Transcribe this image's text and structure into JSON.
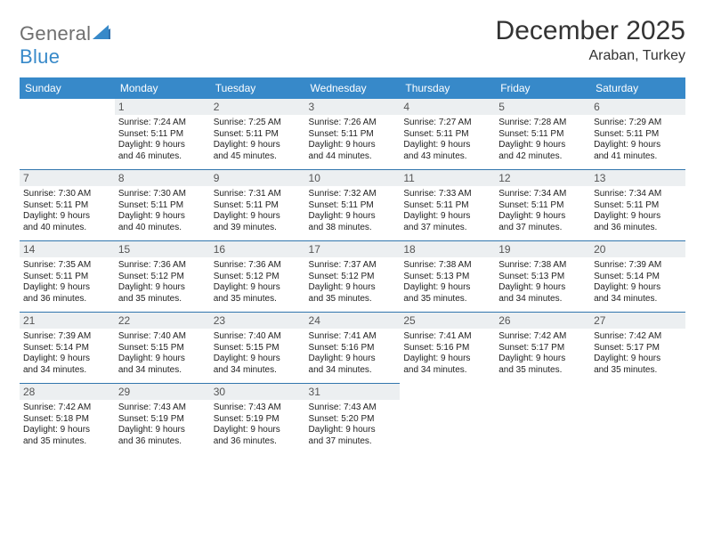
{
  "logo": {
    "word1": "General",
    "word2": "Blue",
    "word1_color": "#6f6f6f",
    "word2_color": "#3789c9",
    "sail_color": "#2f6fab"
  },
  "title": "December 2025",
  "location": "Araban, Turkey",
  "colors": {
    "header_bg": "#3789c9",
    "header_fg": "#ffffff",
    "rule": "#3176ad",
    "daynum_bg": "#eceff1",
    "text": "#222222",
    "background": "#ffffff"
  },
  "typography": {
    "title_size": 30,
    "location_size": 16,
    "dayhead_size": 12,
    "body_size": 10
  },
  "day_headers": [
    "Sunday",
    "Monday",
    "Tuesday",
    "Wednesday",
    "Thursday",
    "Friday",
    "Saturday"
  ],
  "weeks": [
    [
      {
        "n": "",
        "sunrise": "",
        "sunset": "",
        "daylight1": "",
        "daylight2": ""
      },
      {
        "n": "1",
        "sunrise": "Sunrise: 7:24 AM",
        "sunset": "Sunset: 5:11 PM",
        "daylight1": "Daylight: 9 hours",
        "daylight2": "and 46 minutes."
      },
      {
        "n": "2",
        "sunrise": "Sunrise: 7:25 AM",
        "sunset": "Sunset: 5:11 PM",
        "daylight1": "Daylight: 9 hours",
        "daylight2": "and 45 minutes."
      },
      {
        "n": "3",
        "sunrise": "Sunrise: 7:26 AM",
        "sunset": "Sunset: 5:11 PM",
        "daylight1": "Daylight: 9 hours",
        "daylight2": "and 44 minutes."
      },
      {
        "n": "4",
        "sunrise": "Sunrise: 7:27 AM",
        "sunset": "Sunset: 5:11 PM",
        "daylight1": "Daylight: 9 hours",
        "daylight2": "and 43 minutes."
      },
      {
        "n": "5",
        "sunrise": "Sunrise: 7:28 AM",
        "sunset": "Sunset: 5:11 PM",
        "daylight1": "Daylight: 9 hours",
        "daylight2": "and 42 minutes."
      },
      {
        "n": "6",
        "sunrise": "Sunrise: 7:29 AM",
        "sunset": "Sunset: 5:11 PM",
        "daylight1": "Daylight: 9 hours",
        "daylight2": "and 41 minutes."
      }
    ],
    [
      {
        "n": "7",
        "sunrise": "Sunrise: 7:30 AM",
        "sunset": "Sunset: 5:11 PM",
        "daylight1": "Daylight: 9 hours",
        "daylight2": "and 40 minutes."
      },
      {
        "n": "8",
        "sunrise": "Sunrise: 7:30 AM",
        "sunset": "Sunset: 5:11 PM",
        "daylight1": "Daylight: 9 hours",
        "daylight2": "and 40 minutes."
      },
      {
        "n": "9",
        "sunrise": "Sunrise: 7:31 AM",
        "sunset": "Sunset: 5:11 PM",
        "daylight1": "Daylight: 9 hours",
        "daylight2": "and 39 minutes."
      },
      {
        "n": "10",
        "sunrise": "Sunrise: 7:32 AM",
        "sunset": "Sunset: 5:11 PM",
        "daylight1": "Daylight: 9 hours",
        "daylight2": "and 38 minutes."
      },
      {
        "n": "11",
        "sunrise": "Sunrise: 7:33 AM",
        "sunset": "Sunset: 5:11 PM",
        "daylight1": "Daylight: 9 hours",
        "daylight2": "and 37 minutes."
      },
      {
        "n": "12",
        "sunrise": "Sunrise: 7:34 AM",
        "sunset": "Sunset: 5:11 PM",
        "daylight1": "Daylight: 9 hours",
        "daylight2": "and 37 minutes."
      },
      {
        "n": "13",
        "sunrise": "Sunrise: 7:34 AM",
        "sunset": "Sunset: 5:11 PM",
        "daylight1": "Daylight: 9 hours",
        "daylight2": "and 36 minutes."
      }
    ],
    [
      {
        "n": "14",
        "sunrise": "Sunrise: 7:35 AM",
        "sunset": "Sunset: 5:11 PM",
        "daylight1": "Daylight: 9 hours",
        "daylight2": "and 36 minutes."
      },
      {
        "n": "15",
        "sunrise": "Sunrise: 7:36 AM",
        "sunset": "Sunset: 5:12 PM",
        "daylight1": "Daylight: 9 hours",
        "daylight2": "and 35 minutes."
      },
      {
        "n": "16",
        "sunrise": "Sunrise: 7:36 AM",
        "sunset": "Sunset: 5:12 PM",
        "daylight1": "Daylight: 9 hours",
        "daylight2": "and 35 minutes."
      },
      {
        "n": "17",
        "sunrise": "Sunrise: 7:37 AM",
        "sunset": "Sunset: 5:12 PM",
        "daylight1": "Daylight: 9 hours",
        "daylight2": "and 35 minutes."
      },
      {
        "n": "18",
        "sunrise": "Sunrise: 7:38 AM",
        "sunset": "Sunset: 5:13 PM",
        "daylight1": "Daylight: 9 hours",
        "daylight2": "and 35 minutes."
      },
      {
        "n": "19",
        "sunrise": "Sunrise: 7:38 AM",
        "sunset": "Sunset: 5:13 PM",
        "daylight1": "Daylight: 9 hours",
        "daylight2": "and 34 minutes."
      },
      {
        "n": "20",
        "sunrise": "Sunrise: 7:39 AM",
        "sunset": "Sunset: 5:14 PM",
        "daylight1": "Daylight: 9 hours",
        "daylight2": "and 34 minutes."
      }
    ],
    [
      {
        "n": "21",
        "sunrise": "Sunrise: 7:39 AM",
        "sunset": "Sunset: 5:14 PM",
        "daylight1": "Daylight: 9 hours",
        "daylight2": "and 34 minutes."
      },
      {
        "n": "22",
        "sunrise": "Sunrise: 7:40 AM",
        "sunset": "Sunset: 5:15 PM",
        "daylight1": "Daylight: 9 hours",
        "daylight2": "and 34 minutes."
      },
      {
        "n": "23",
        "sunrise": "Sunrise: 7:40 AM",
        "sunset": "Sunset: 5:15 PM",
        "daylight1": "Daylight: 9 hours",
        "daylight2": "and 34 minutes."
      },
      {
        "n": "24",
        "sunrise": "Sunrise: 7:41 AM",
        "sunset": "Sunset: 5:16 PM",
        "daylight1": "Daylight: 9 hours",
        "daylight2": "and 34 minutes."
      },
      {
        "n": "25",
        "sunrise": "Sunrise: 7:41 AM",
        "sunset": "Sunset: 5:16 PM",
        "daylight1": "Daylight: 9 hours",
        "daylight2": "and 34 minutes."
      },
      {
        "n": "26",
        "sunrise": "Sunrise: 7:42 AM",
        "sunset": "Sunset: 5:17 PM",
        "daylight1": "Daylight: 9 hours",
        "daylight2": "and 35 minutes."
      },
      {
        "n": "27",
        "sunrise": "Sunrise: 7:42 AM",
        "sunset": "Sunset: 5:17 PM",
        "daylight1": "Daylight: 9 hours",
        "daylight2": "and 35 minutes."
      }
    ],
    [
      {
        "n": "28",
        "sunrise": "Sunrise: 7:42 AM",
        "sunset": "Sunset: 5:18 PM",
        "daylight1": "Daylight: 9 hours",
        "daylight2": "and 35 minutes."
      },
      {
        "n": "29",
        "sunrise": "Sunrise: 7:43 AM",
        "sunset": "Sunset: 5:19 PM",
        "daylight1": "Daylight: 9 hours",
        "daylight2": "and 36 minutes."
      },
      {
        "n": "30",
        "sunrise": "Sunrise: 7:43 AM",
        "sunset": "Sunset: 5:19 PM",
        "daylight1": "Daylight: 9 hours",
        "daylight2": "and 36 minutes."
      },
      {
        "n": "31",
        "sunrise": "Sunrise: 7:43 AM",
        "sunset": "Sunset: 5:20 PM",
        "daylight1": "Daylight: 9 hours",
        "daylight2": "and 37 minutes."
      },
      {
        "n": "",
        "sunrise": "",
        "sunset": "",
        "daylight1": "",
        "daylight2": ""
      },
      {
        "n": "",
        "sunrise": "",
        "sunset": "",
        "daylight1": "",
        "daylight2": ""
      },
      {
        "n": "",
        "sunrise": "",
        "sunset": "",
        "daylight1": "",
        "daylight2": ""
      }
    ]
  ]
}
